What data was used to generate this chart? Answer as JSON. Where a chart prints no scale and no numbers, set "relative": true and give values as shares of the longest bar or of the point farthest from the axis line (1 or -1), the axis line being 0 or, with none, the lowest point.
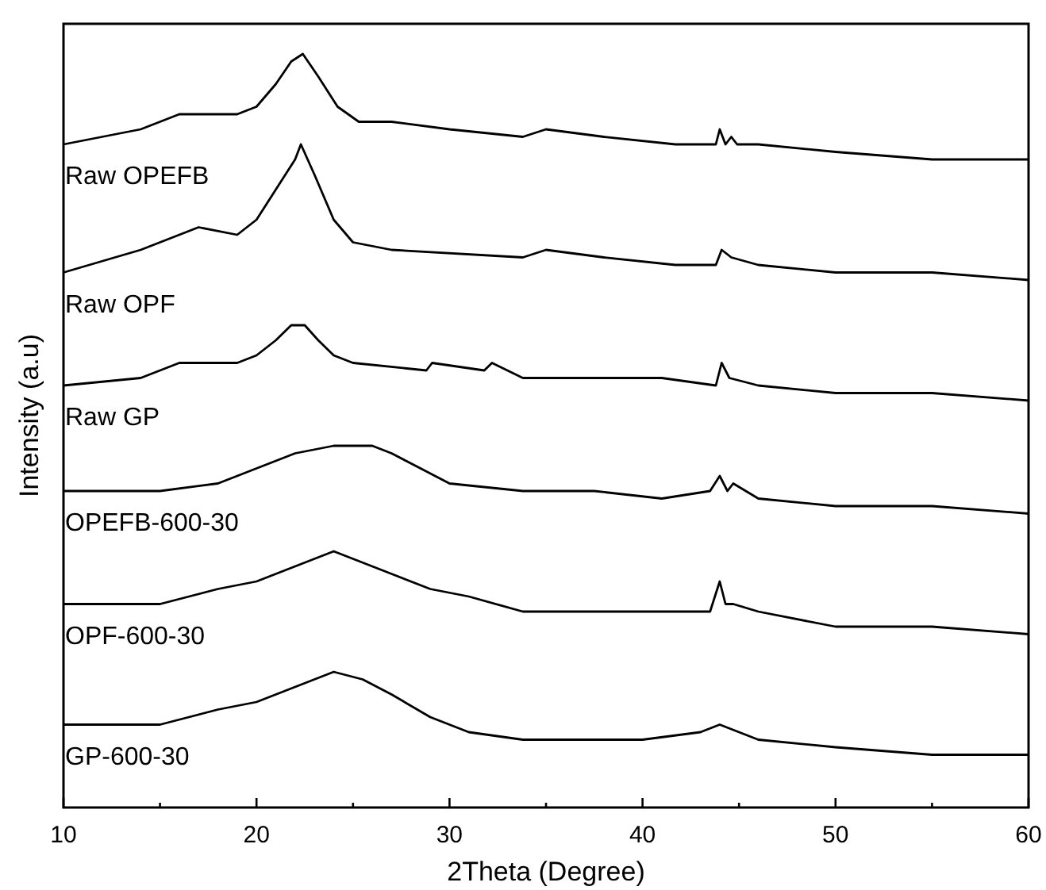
{
  "chart_data": {
    "type": "line",
    "relative": true,
    "xlabel": "2Theta (Degree)",
    "ylabel": "Intensity (a.u)",
    "xlim": [
      10,
      60
    ],
    "xticks": [
      10,
      {
        "value": 15,
        "label": null
      },
      20,
      {
        "value": 25,
        "label": null
      },
      30,
      {
        "value": 35,
        "label": null
      },
      40,
      {
        "value": 45,
        "label": null
      },
      50,
      {
        "value": 55,
        "label": null
      },
      60
    ],
    "marker": "none",
    "line_style": "solid",
    "series": [
      {
        "name": "Raw OPEFB",
        "color": "#000000",
        "x": [
          10,
          12,
          14,
          16,
          18,
          19,
          20,
          21,
          21.8,
          22.4,
          23.2,
          24.2,
          25.3,
          27,
          30,
          33.8,
          35,
          38,
          41.7,
          43.8,
          44.0,
          44.3,
          44.6,
          44.9,
          46,
          50,
          55,
          60
        ],
        "values": [
          0.88,
          0.89,
          0.9,
          0.92,
          0.92,
          0.92,
          0.93,
          0.96,
          0.99,
          1.0,
          0.97,
          0.93,
          0.91,
          0.91,
          0.9,
          0.89,
          0.9,
          0.89,
          0.88,
          0.88,
          0.9,
          0.88,
          0.89,
          0.88,
          0.88,
          0.87,
          0.86,
          0.86
        ]
      },
      {
        "name": "Raw OPF",
        "color": "#000000",
        "x": [
          10,
          14,
          16,
          17,
          19,
          20,
          21,
          22,
          22.3,
          23,
          24,
          25,
          27,
          33.8,
          35,
          38,
          41.7,
          43.8,
          44.1,
          44.6,
          46,
          50,
          55,
          60
        ],
        "values": [
          0.71,
          0.74,
          0.76,
          0.77,
          0.76,
          0.78,
          0.82,
          0.86,
          0.88,
          0.84,
          0.78,
          0.75,
          0.74,
          0.73,
          0.74,
          0.73,
          0.72,
          0.72,
          0.74,
          0.73,
          0.72,
          0.71,
          0.71,
          0.7
        ]
      },
      {
        "name": "Raw GP",
        "color": "#000000",
        "x": [
          10,
          14,
          16,
          19,
          20,
          21,
          21.8,
          22.5,
          23.2,
          24,
          25,
          28.8,
          29.1,
          31.8,
          32.2,
          33.8,
          35,
          38,
          41,
          43.8,
          44.1,
          44.5,
          46,
          50,
          55,
          60
        ],
        "values": [
          0.56,
          0.57,
          0.59,
          0.59,
          0.6,
          0.62,
          0.64,
          0.64,
          0.62,
          0.6,
          0.59,
          0.58,
          0.59,
          0.58,
          0.59,
          0.57,
          0.57,
          0.57,
          0.57,
          0.56,
          0.59,
          0.57,
          0.56,
          0.55,
          0.55,
          0.54
        ]
      },
      {
        "name": "OPEFB-600-30",
        "color": "#000000",
        "x": [
          10,
          15,
          18,
          20,
          22,
          24,
          26,
          27,
          28.5,
          30,
          33.8,
          35,
          37.5,
          41,
          43.5,
          44,
          44.4,
          44.7,
          46,
          50,
          55,
          60
        ],
        "values": [
          0.42,
          0.42,
          0.43,
          0.45,
          0.47,
          0.48,
          0.48,
          0.47,
          0.45,
          0.43,
          0.42,
          0.42,
          0.42,
          0.41,
          0.42,
          0.44,
          0.42,
          0.43,
          0.41,
          0.4,
          0.4,
          0.39
        ]
      },
      {
        "name": "OPF-600-30",
        "color": "#000000",
        "x": [
          10,
          15,
          18,
          20,
          22,
          24,
          25,
          27,
          29,
          31,
          33.8,
          36,
          40,
          43.5,
          44,
          44.3,
          44.7,
          46,
          50,
          55,
          60
        ],
        "values": [
          0.27,
          0.27,
          0.29,
          0.3,
          0.32,
          0.34,
          0.33,
          0.31,
          0.29,
          0.28,
          0.26,
          0.26,
          0.26,
          0.26,
          0.3,
          0.27,
          0.27,
          0.26,
          0.24,
          0.24,
          0.23
        ]
      },
      {
        "name": "GP-600-30",
        "color": "#000000",
        "x": [
          10,
          15,
          18,
          20,
          22,
          24,
          25.5,
          27,
          29,
          31,
          33.8,
          37,
          40,
          43,
          44,
          45,
          46,
          50,
          55,
          60
        ],
        "values": [
          0.11,
          0.11,
          0.13,
          0.14,
          0.16,
          0.18,
          0.17,
          0.15,
          0.12,
          0.1,
          0.09,
          0.09,
          0.09,
          0.1,
          0.11,
          0.1,
          0.09,
          0.08,
          0.07,
          0.07
        ]
      }
    ]
  }
}
